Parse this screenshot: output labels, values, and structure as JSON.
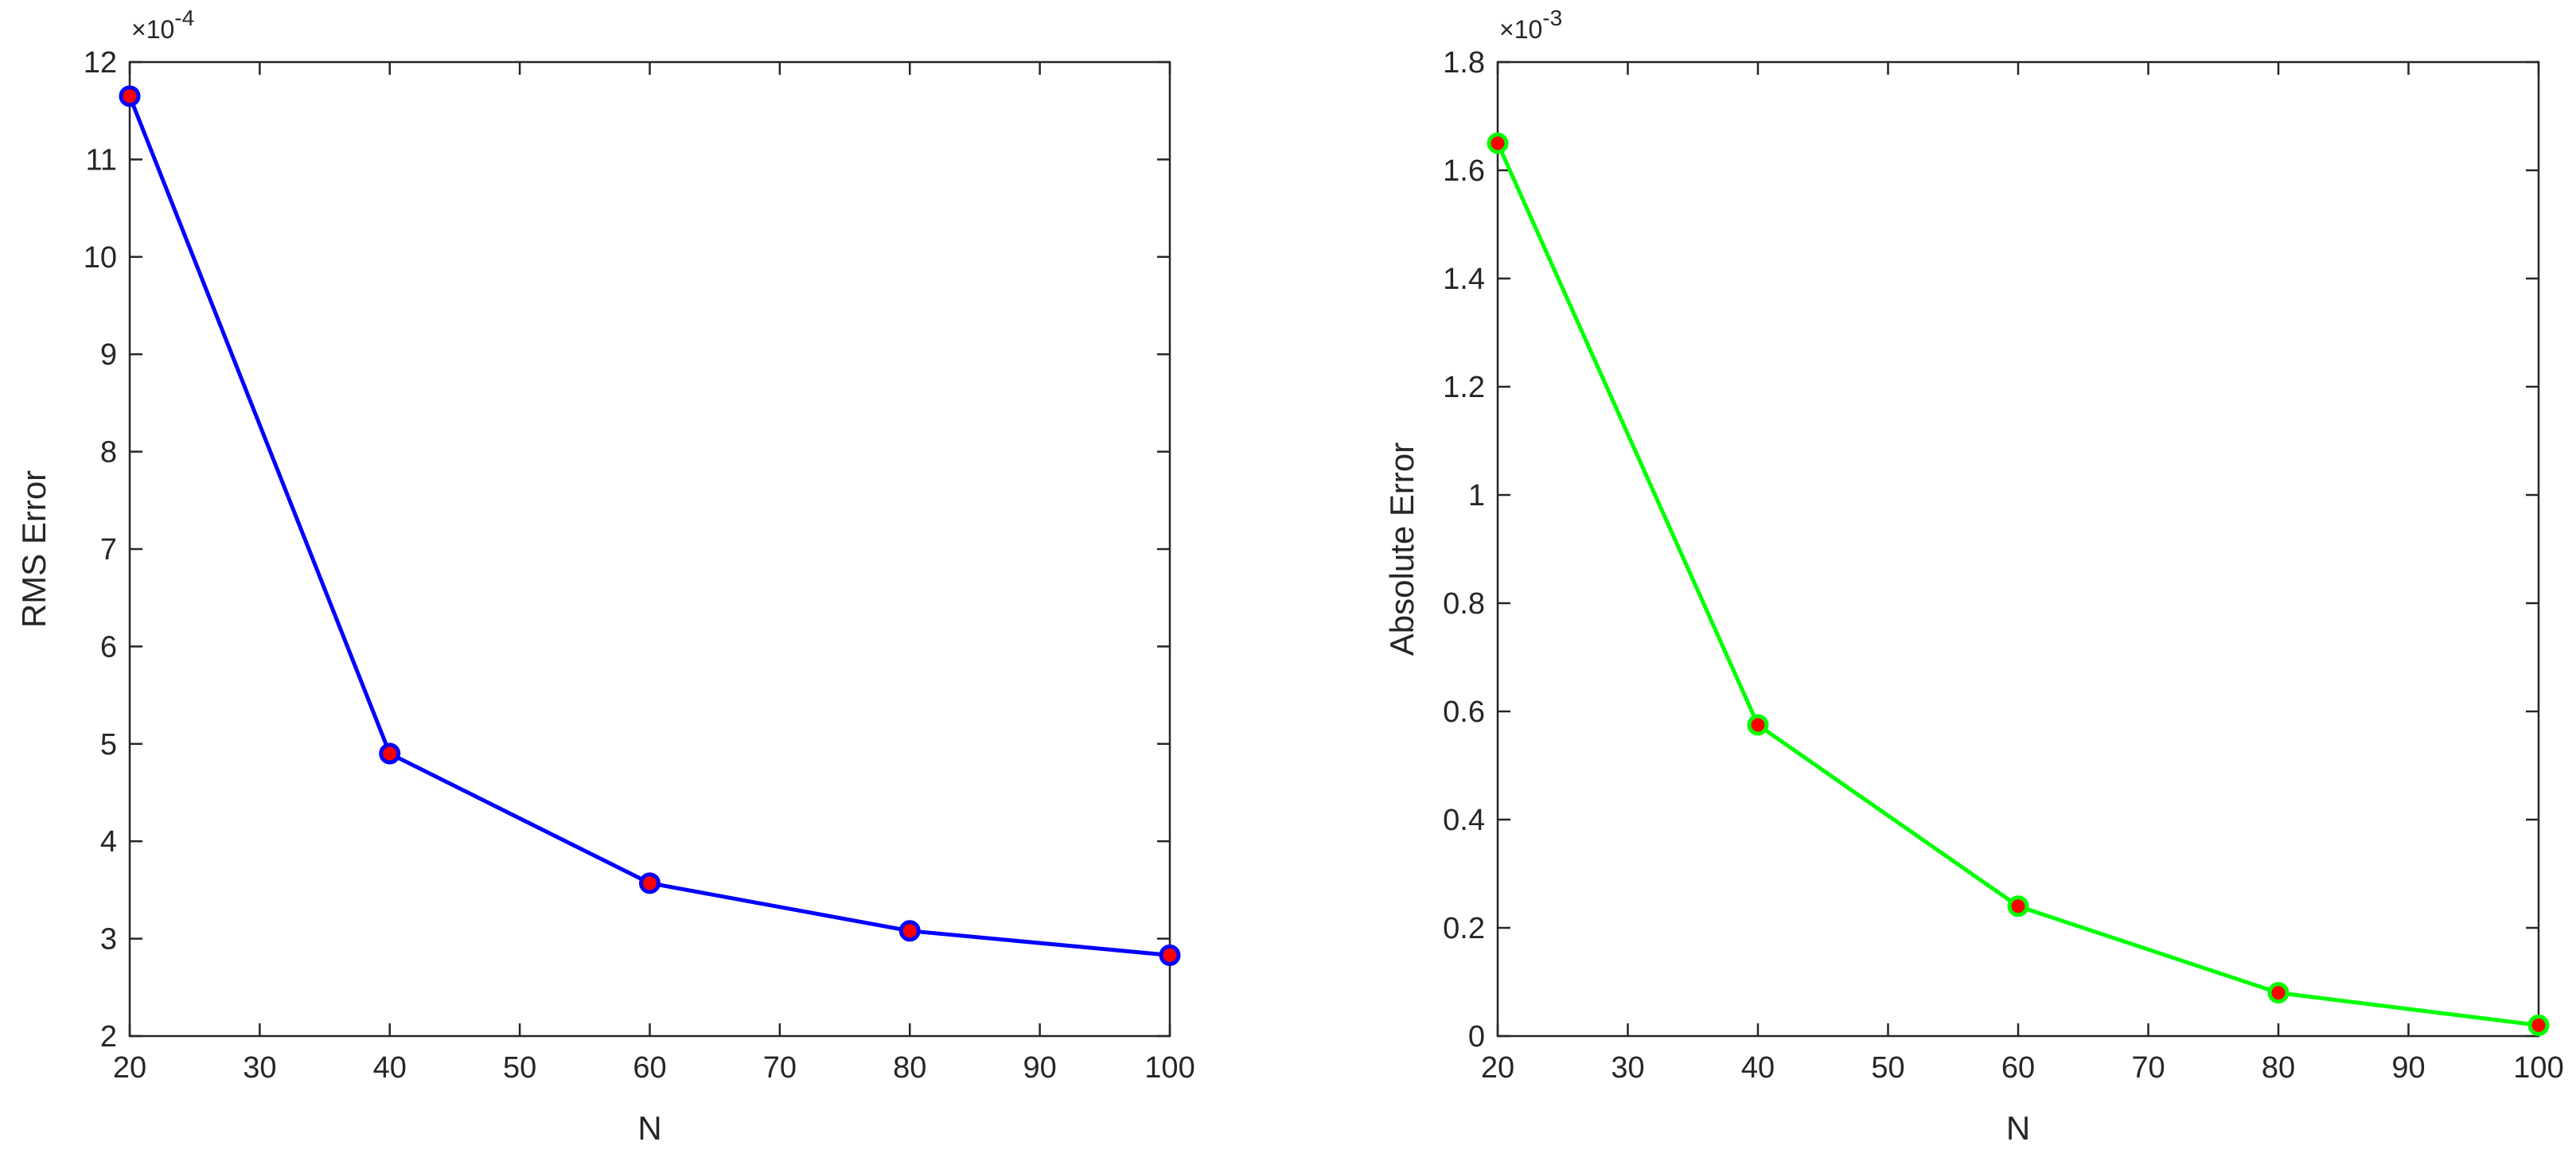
{
  "chart_data": [
    {
      "type": "line",
      "xlabel": "N",
      "ylabel": "RMS Error",
      "y_exponent_label": "×10",
      "y_exponent": "-4",
      "x": [
        20,
        40,
        60,
        80,
        100
      ],
      "series": [
        {
          "values": [
            11.65,
            4.9,
            3.57,
            3.08,
            2.83
          ],
          "line_color": "#0000ff",
          "marker_fill": "#ff0000",
          "marker_edge": "#0000ff"
        }
      ],
      "xlim": [
        20,
        100
      ],
      "ylim": [
        2,
        12
      ],
      "xticks": [
        20,
        30,
        40,
        50,
        60,
        70,
        80,
        90,
        100
      ],
      "yticks": [
        2,
        3,
        4,
        5,
        6,
        7,
        8,
        9,
        10,
        11,
        12
      ],
      "grid": false,
      "box": true
    },
    {
      "type": "line",
      "xlabel": "N",
      "ylabel": "Absolute Error",
      "y_exponent_label": "×10",
      "y_exponent": "-3",
      "x": [
        20,
        40,
        60,
        80,
        100
      ],
      "series": [
        {
          "values": [
            1.65,
            0.575,
            0.24,
            0.08,
            0.02
          ],
          "line_color": "#00ff00",
          "marker_fill": "#ff0000",
          "marker_edge": "#00ff00"
        }
      ],
      "xlim": [
        20,
        100
      ],
      "ylim": [
        0,
        1.8
      ],
      "xticks": [
        20,
        30,
        40,
        50,
        60,
        70,
        80,
        90,
        100
      ],
      "yticks": [
        0,
        0.2,
        0.4,
        0.6,
        0.8,
        1,
        1.2,
        1.4,
        1.6,
        1.8
      ],
      "grid": false,
      "box": true
    }
  ]
}
